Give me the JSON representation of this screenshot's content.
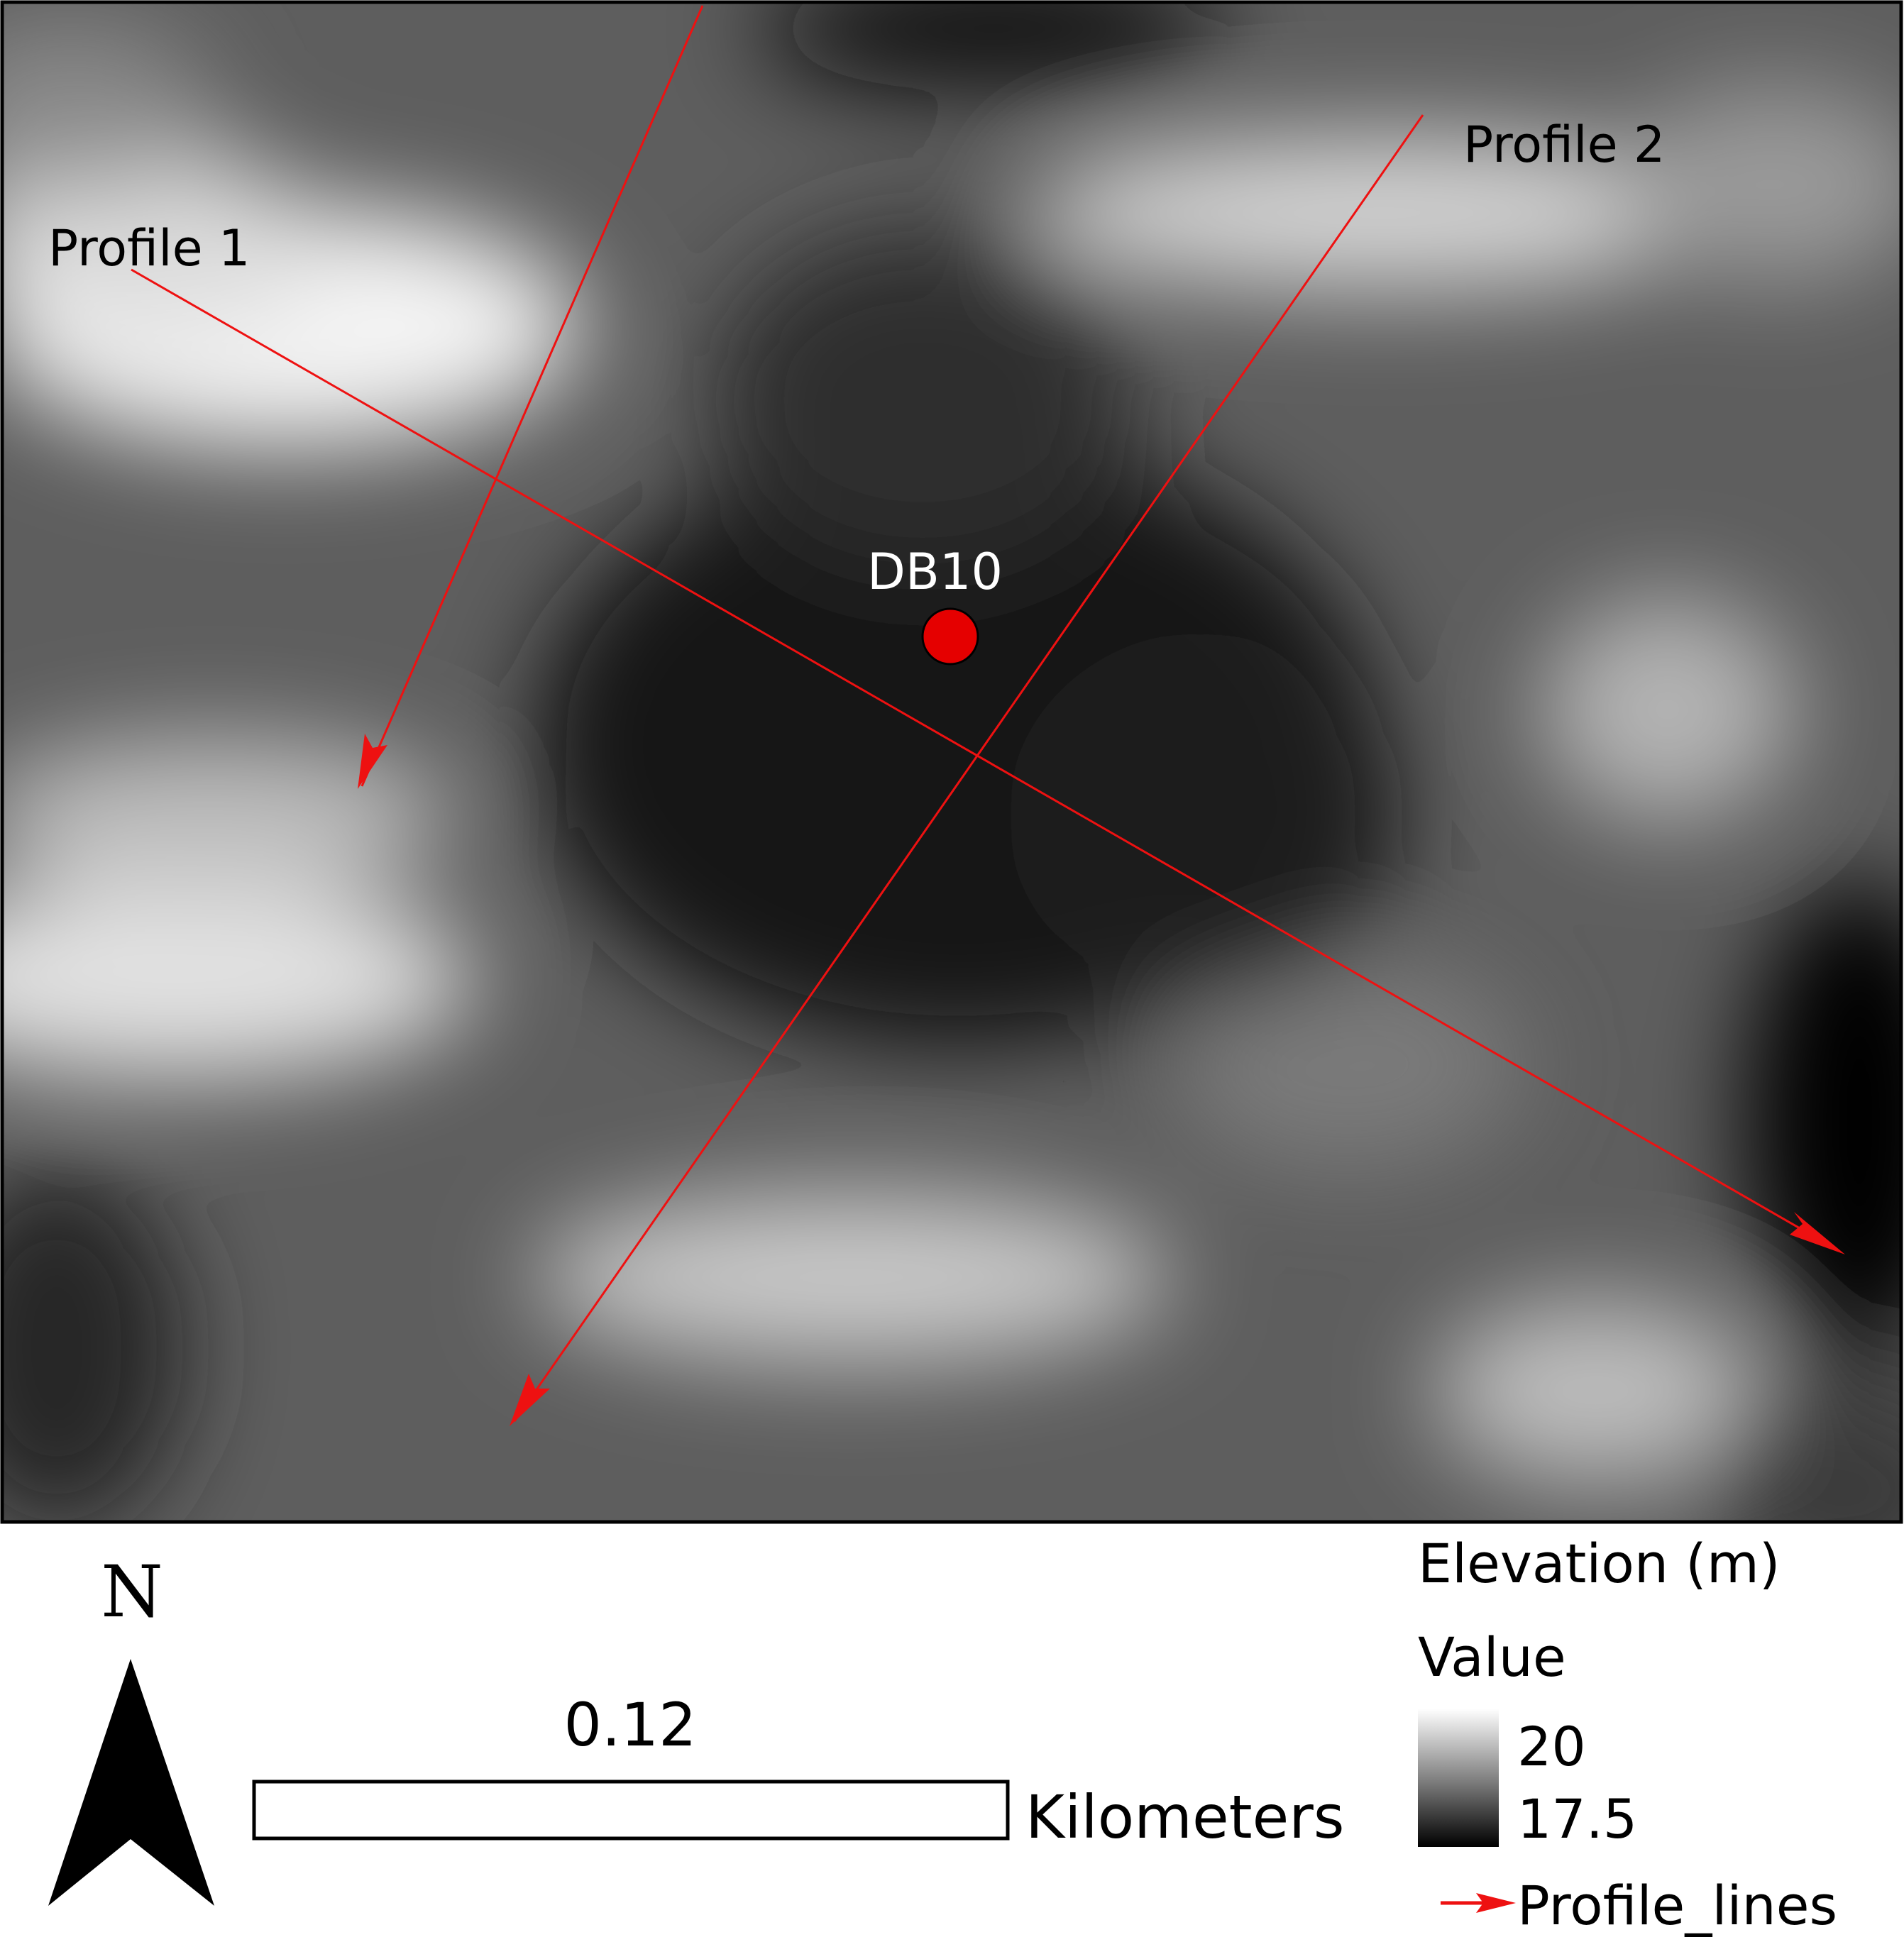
{
  "map": {
    "profile_1_label": "Profile 1",
    "profile_2_label": "Profile 2",
    "point_label": "DB10",
    "line_color": "#ee1111",
    "point_color": "#e50000"
  },
  "north_arrow": {
    "label": "N"
  },
  "scale_bar": {
    "value": "0.12",
    "unit": "Kilometers"
  },
  "legend": {
    "title": "Elevation (m)",
    "subtitle": "Value",
    "max_label": "20",
    "min_label": "17.5",
    "color_high": "#ffffff",
    "color_low": "#000000",
    "lines_label": "Profile_lines"
  }
}
